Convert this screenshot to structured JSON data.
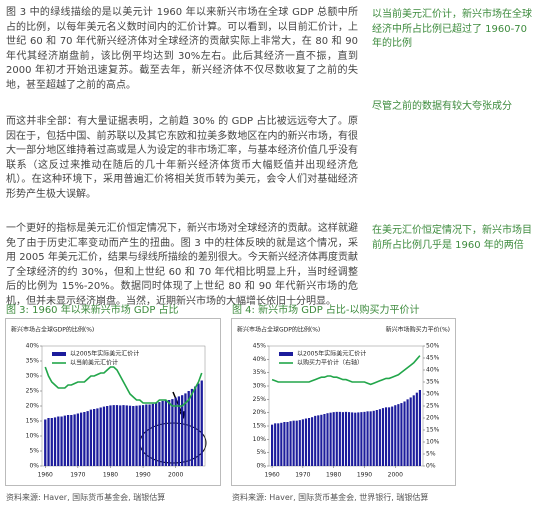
{
  "body": {
    "paragraphs": [
      "图 3 中的绿线描绘的是以美元计 1960 年以来新兴市场在全球 GDP 总额中所占的比例，以每年美元名义数时间内的汇价计算。可以看到，以目前汇价计，上世纪 60 和 70 年代新兴经济体对全球经济的贡献实际上非常大，在 80 和 90 年代其经济崩盘前，该比例平均达到 30%左右。此后其经济一直不振，直到 2000 年初才开始迅速复苏。截至去年，新兴经济体不仅尽数收复了之前的失地，甚至超越了之前的高点。",
      "而这并非全部：有大量证据表明，之前趋 30% 的 GDP 占比被远远夸大了。原因在于，包括中国、前苏联以及其它东欧和拉美多数地区在内的新兴市场，有很大一部分地区维持着过高或是人为设定的非市场汇率，与基本经济价值几乎没有联系（这反过来推动在随后的几十年新兴经济体货币大幅贬值并出现经济危机）。在这种环境下，采用普遍汇价将相关货币转为美元，会令人们对基础经济形势产生极大误解。",
      "一个更好的指标是美元汇价恒定情况下，新兴市场对全球经济的贡献。这样就避免了由于历史汇率变动而产生的扭曲。图 3 中的柱体反映的就是这个情况，采用 2005 年美元汇价，结果与绿线所描绘的差别很大。今天新兴经济体再度贡献了全球经济的约 30%，但和上世纪 60 和 70 年代相比明显上升，当时经调整后的比例为 15%-20%。数据同时体现了上世纪 80 和 90 年代新兴市场的危机，但并未显示经济崩盘。当然，近期新兴市场的大幅增长依旧十分明显。"
    ],
    "notes": [
      "以当前美元汇价计，新兴市场在全球经济中所占比例已超过了 1960-70 年的比例",
      "尽管之前的数据有较大夸张成分",
      "在美元汇价恒定情况下，新兴市场目前所占比例几乎是 1960 年的两倍"
    ]
  },
  "figures": [
    {
      "title": "图 3: 1960 年以来新兴市场 GDP 占比",
      "source": "资料来源: Haver, 国际货币基金会, 瑞银估算",
      "chart_data": {
        "type": "bar",
        "title": "新兴市场占全球GDP的比例(%)",
        "x": [
          1960,
          1961,
          1962,
          1963,
          1964,
          1965,
          1966,
          1967,
          1968,
          1969,
          1970,
          1971,
          1972,
          1973,
          1974,
          1975,
          1976,
          1977,
          1978,
          1979,
          1980,
          1981,
          1982,
          1983,
          1984,
          1985,
          1986,
          1987,
          1988,
          1989,
          1990,
          1991,
          1992,
          1993,
          1994,
          1995,
          1996,
          1997,
          1998,
          1999,
          2000,
          2001,
          2002,
          2003,
          2004,
          2005,
          2006,
          2007,
          2008
        ],
        "xlim": [
          1959,
          2009
        ],
        "xticks": [
          1960,
          1970,
          1980,
          1990,
          2000
        ],
        "ylim": [
          0,
          40
        ],
        "yticks": [
          {
            "value": 0,
            "label": "0%"
          },
          {
            "value": 5,
            "label": "5%"
          },
          {
            "value": 10,
            "label": "10%"
          },
          {
            "value": 15,
            "label": "15%"
          },
          {
            "value": 20,
            "label": "20%"
          },
          {
            "value": 25,
            "label": "25%"
          },
          {
            "value": 30,
            "label": "30%"
          },
          {
            "value": 35,
            "label": "35%"
          },
          {
            "value": 40,
            "label": "40%"
          }
        ],
        "series": [
          {
            "name": "以2005年实际美元汇价计",
            "type": "bar",
            "color": "#1c1c9c",
            "values": [
              15.5,
              16,
              16,
              16.2,
              16.5,
              16.5,
              16.8,
              17,
              17,
              17.2,
              17.5,
              17.8,
              18,
              18.3,
              18.8,
              19,
              19.2,
              19.5,
              19.8,
              20,
              20.2,
              20.3,
              20.3,
              20.2,
              20.3,
              20.2,
              20.1,
              20,
              20.1,
              20.2,
              20.3,
              20.5,
              20.5,
              20.7,
              21,
              21.3,
              21.7,
              22,
              22,
              22.3,
              22.8,
              23.2,
              23.6,
              24.2,
              25,
              25.7,
              26.5,
              27.5,
              28.5
            ]
          },
          {
            "name": "以当前美元汇价计",
            "type": "line",
            "color": "#22a64a",
            "values": [
              33,
              30,
              28,
              27,
              26,
              26,
              26,
              27,
              27,
              27.5,
              28,
              28,
              28,
              29,
              30,
              30,
              30.5,
              31,
              31,
              32,
              33,
              33,
              32,
              30,
              28,
              26,
              24,
              23,
              22,
              22,
              21,
              21,
              21,
              21,
              21,
              22,
              22,
              22,
              21,
              20,
              20,
              20,
              20,
              21,
              22,
              24,
              26,
              28,
              31
            ]
          }
        ]
      }
    },
    {
      "title": "图 4: 新兴市场 GDP 占比-以购买力平价计",
      "source": "资料来源: Haver, 国际货币基金会, 世界银行, 瑞银估算",
      "chart_data": {
        "type": "bar",
        "title": "新兴市场占全球GDP的比例(%)",
        "y2_title": "新兴市场购买力平价(%)",
        "x": [
          1960,
          1961,
          1962,
          1963,
          1964,
          1965,
          1966,
          1967,
          1968,
          1969,
          1970,
          1971,
          1972,
          1973,
          1974,
          1975,
          1976,
          1977,
          1978,
          1979,
          1980,
          1981,
          1982,
          1983,
          1984,
          1985,
          1986,
          1987,
          1988,
          1989,
          1990,
          1991,
          1992,
          1993,
          1994,
          1995,
          1996,
          1997,
          1998,
          1999,
          2000,
          2001,
          2002,
          2003,
          2004,
          2005,
          2006,
          2007,
          2008
        ],
        "xlim": [
          1959,
          2009
        ],
        "xticks": [
          1960,
          1970,
          1980,
          1990,
          2000
        ],
        "ylim": [
          0,
          45
        ],
        "yticks": [
          {
            "value": 0,
            "label": "0%"
          },
          {
            "value": 5,
            "label": "5%"
          },
          {
            "value": 10,
            "label": "10%"
          },
          {
            "value": 15,
            "label": "15%"
          },
          {
            "value": 20,
            "label": "20%"
          },
          {
            "value": 25,
            "label": "25%"
          },
          {
            "value": 30,
            "label": "30%"
          },
          {
            "value": 35,
            "label": "35%"
          },
          {
            "value": 40,
            "label": "40%"
          },
          {
            "value": 45,
            "label": "45%"
          }
        ],
        "y2lim": [
          0,
          50
        ],
        "y2ticks": [
          {
            "value": 0,
            "label": "0%"
          },
          {
            "value": 5,
            "label": "5%"
          },
          {
            "value": 10,
            "label": "10%"
          },
          {
            "value": 15,
            "label": "15%"
          },
          {
            "value": 20,
            "label": "20%"
          },
          {
            "value": 25,
            "label": "25%"
          },
          {
            "value": 30,
            "label": "30%"
          },
          {
            "value": 35,
            "label": "35%"
          },
          {
            "value": 40,
            "label": "40%"
          },
          {
            "value": 45,
            "label": "45%"
          },
          {
            "value": 50,
            "label": "50%"
          }
        ],
        "series": [
          {
            "name": "以2005年实际美元汇价计",
            "type": "bar",
            "color": "#1c1c9c",
            "values": [
              15.5,
              16,
              16,
              16.2,
              16.5,
              16.5,
              16.8,
              17,
              17,
              17.2,
              17.5,
              17.8,
              18,
              18.3,
              18.8,
              19,
              19.2,
              19.5,
              19.8,
              20,
              20.2,
              20.3,
              20.3,
              20.2,
              20.3,
              20.2,
              20.1,
              20,
              20.1,
              20.2,
              20.3,
              20.5,
              20.5,
              20.7,
              21,
              21.3,
              21.7,
              22,
              22,
              22.3,
              22.8,
              23.2,
              23.6,
              24.2,
              25,
              25.7,
              26.5,
              27.5,
              28.5
            ]
          },
          {
            "name": "以购买力平价计（右轴）",
            "type": "line",
            "axis": "y2",
            "color": "#22a64a",
            "values": [
              36,
              35.5,
              35,
              35,
              35,
              35,
              35,
              35,
              35,
              35,
              35,
              35,
              35,
              35.5,
              36,
              36.5,
              37,
              37,
              37.5,
              37.5,
              37,
              37,
              36.5,
              36,
              36,
              35.5,
              35,
              35,
              35,
              35,
              35,
              34.5,
              34,
              34.5,
              35,
              35.5,
              36,
              36.5,
              36.5,
              37,
              37.5,
              38,
              39,
              40,
              41,
              42,
              43,
              44.5,
              46
            ]
          }
        ]
      }
    }
  ]
}
